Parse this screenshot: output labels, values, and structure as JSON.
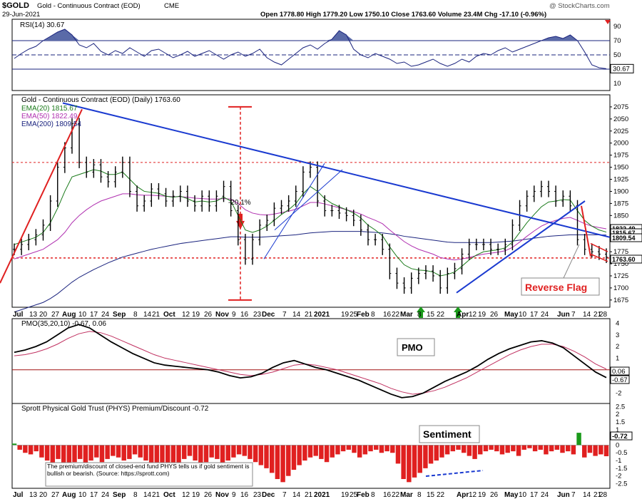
{
  "header": {
    "symbol": "$GOLD",
    "name": "Gold - Continuous Contract (EOD)",
    "exchange": "CME",
    "date": "29-Jun-2021",
    "ohlc": "Open 1778.80  High 1779.20  Low 1750.10  Close 1763.60  Volume 23.4M  Chg -17.10 (-0.96%)",
    "copyright": "@ StockCharts.com"
  },
  "chart_data": [
    {
      "type": "line",
      "panel": "RSI",
      "title": "RSI(14) 30.67",
      "last_value_label": "30.67",
      "y_ticks": [
        10,
        30,
        50,
        70,
        90
      ],
      "ylim": [
        0,
        100
      ],
      "overbought": 70,
      "oversold": 30,
      "series": [
        {
          "name": "RSI(14)",
          "values": [
            45,
            52,
            58,
            62,
            70,
            76,
            82,
            86,
            78,
            64,
            60,
            66,
            55,
            50,
            56,
            52,
            60,
            54,
            48,
            56,
            58,
            52,
            46,
            50,
            55,
            48,
            52,
            56,
            50,
            44,
            50,
            54,
            48,
            52,
            58,
            46,
            40,
            36,
            44,
            52,
            60,
            64,
            58,
            66,
            72,
            84,
            78,
            58,
            50,
            46,
            52,
            48,
            44,
            38,
            40,
            34,
            36,
            40,
            44,
            38,
            34,
            38,
            44,
            40,
            48,
            52,
            50,
            56,
            60,
            54,
            58,
            62,
            66,
            70,
            74,
            76,
            73,
            78,
            70,
            54,
            36,
            32,
            30.67
          ]
        }
      ]
    },
    {
      "type": "line",
      "panel": "Price",
      "title": "Gold - Continuous Contract (EOD) (Daily) 1763.60",
      "y_ticks": [
        1675,
        1700,
        1725,
        1750,
        1775,
        1800,
        1825,
        1850,
        1875,
        1900,
        1925,
        1950,
        1975,
        2000,
        2025,
        2050,
        2075
      ],
      "ylim": [
        1660,
        2100
      ],
      "x_ticks": [
        "Jul",
        "13",
        "20",
        "27",
        "Aug",
        "10",
        "17",
        "24",
        "Sep",
        "8",
        "14",
        "21",
        "Oct",
        "12",
        "19",
        "26",
        "Nov",
        "9",
        "16",
        "23",
        "Dec",
        "7",
        "14",
        "21",
        "2021",
        "19",
        "25",
        "Feb",
        "8",
        "16",
        "22",
        "Mar",
        "8",
        "15",
        "22",
        "Apr",
        "12",
        "19",
        "26",
        "May",
        "10",
        "17",
        "24",
        "Jun",
        "7",
        "14",
        "21",
        "28"
      ],
      "series": [
        {
          "name": "Gold - Continuous Contract (EOD)",
          "values": [
            1780,
            1790,
            1800,
            1810,
            1830,
            1880,
            1950,
            1990,
            2040,
            1960,
            1940,
            1955,
            1930,
            1920,
            1940,
            1960,
            1900,
            1870,
            1880,
            1905,
            1895,
            1880,
            1890,
            1900,
            1880,
            1870,
            1890,
            1870,
            1890,
            1910,
            1860,
            1800,
            1760,
            1800,
            1830,
            1840,
            1865,
            1870,
            1880,
            1900,
            1940,
            1950,
            1880,
            1860,
            1860,
            1855,
            1850,
            1840,
            1820,
            1800,
            1800,
            1780,
            1730,
            1710,
            1700,
            1720,
            1730,
            1735,
            1725,
            1700,
            1730,
            1740,
            1770,
            1790,
            1790,
            1790,
            1780,
            1780,
            1790,
            1830,
            1870,
            1890,
            1900,
            1910,
            1900,
            1880,
            1890,
            1870,
            1800,
            1780,
            1775,
            1770,
            1763.6
          ]
        },
        {
          "name": "EMA(20) 1815.67",
          "values": [
            1790,
            1795,
            1800,
            1805,
            1815,
            1835,
            1865,
            1900,
            1930,
            1935,
            1940,
            1945,
            1942,
            1935,
            1935,
            1940,
            1925,
            1910,
            1900,
            1898,
            1896,
            1890,
            1888,
            1890,
            1885,
            1878,
            1880,
            1878,
            1880,
            1888,
            1880,
            1850,
            1820,
            1815,
            1820,
            1828,
            1840,
            1852,
            1862,
            1875,
            1895,
            1910,
            1900,
            1885,
            1875,
            1868,
            1862,
            1855,
            1845,
            1830,
            1820,
            1808,
            1785,
            1765,
            1748,
            1740,
            1737,
            1736,
            1733,
            1725,
            1728,
            1733,
            1745,
            1758,
            1768,
            1775,
            1777,
            1779,
            1783,
            1795,
            1815,
            1835,
            1852,
            1868,
            1878,
            1880,
            1883,
            1882,
            1860,
            1840,
            1828,
            1820,
            1815.67
          ]
        },
        {
          "name": "EMA(50) 1822.49",
          "values": [
            1760,
            1765,
            1770,
            1775,
            1780,
            1790,
            1800,
            1815,
            1835,
            1850,
            1862,
            1872,
            1880,
            1885,
            1890,
            1895,
            1895,
            1893,
            1892,
            1892,
            1891,
            1890,
            1889,
            1889,
            1888,
            1886,
            1885,
            1884,
            1884,
            1885,
            1884,
            1875,
            1862,
            1855,
            1852,
            1851,
            1853,
            1856,
            1859,
            1863,
            1870,
            1877,
            1877,
            1874,
            1870,
            1866,
            1862,
            1858,
            1853,
            1846,
            1840,
            1833,
            1820,
            1808,
            1796,
            1787,
            1780,
            1775,
            1770,
            1763,
            1760,
            1758,
            1760,
            1763,
            1767,
            1770,
            1772,
            1774,
            1777,
            1784,
            1795,
            1807,
            1818,
            1828,
            1835,
            1840,
            1844,
            1846,
            1840,
            1833,
            1828,
            1825,
            1822.49
          ]
        },
        {
          "name": "EMA(200) 1809.54",
          "values": [
            1650,
            1655,
            1660,
            1665,
            1670,
            1678,
            1688,
            1700,
            1712,
            1722,
            1730,
            1738,
            1745,
            1752,
            1758,
            1764,
            1768,
            1772,
            1776,
            1780,
            1783,
            1786,
            1789,
            1792,
            1794,
            1796,
            1798,
            1800,
            1802,
            1804,
            1806,
            1806,
            1805,
            1805,
            1805,
            1806,
            1807,
            1808,
            1809,
            1810,
            1812,
            1814,
            1815,
            1816,
            1817,
            1817,
            1817,
            1817,
            1817,
            1816,
            1815,
            1814,
            1812,
            1810,
            1807,
            1805,
            1803,
            1801,
            1799,
            1797,
            1795,
            1794,
            1794,
            1794,
            1794,
            1794,
            1794,
            1795,
            1796,
            1797,
            1799,
            1801,
            1803,
            1805,
            1807,
            1808,
            1809,
            1810,
            1810,
            1810,
            1810,
            1810,
            1809.54
          ]
        }
      ],
      "value_labels": [
        "1822.49",
        "1815.67",
        "1809.54",
        "1763.60"
      ],
      "annotations": [
        "-20.1%",
        "Reverse Flag"
      ]
    },
    {
      "type": "line",
      "panel": "PMO",
      "title": "PMO(35,20,10) -0.67, 0.06",
      "y_ticks": [
        -2,
        -1,
        0,
        1,
        2,
        3,
        4
      ],
      "ylim": [
        -2.9,
        4.4
      ],
      "last_value_labels": [
        "0.06",
        "-0.67"
      ],
      "annotation": "PMO",
      "series": [
        {
          "name": "PMO",
          "values": [
            1.5,
            1.7,
            2.0,
            2.4,
            3.0,
            3.6,
            3.9,
            3.6,
            3.0,
            2.4,
            1.9,
            1.4,
            1.0,
            0.6,
            0.4,
            0.3,
            0.2,
            0.1,
            0.0,
            -0.2,
            -0.5,
            -0.7,
            -0.6,
            -0.3,
            0.2,
            0.6,
            0.8,
            0.5,
            0.2,
            0.0,
            -0.3,
            -0.6,
            -0.9,
            -1.3,
            -1.7,
            -2.1,
            -2.4,
            -2.3,
            -2.0,
            -1.5,
            -1.0,
            -0.6,
            -0.2,
            0.3,
            0.9,
            1.4,
            1.8,
            2.1,
            2.4,
            2.5,
            2.3,
            1.9,
            1.2,
            0.5,
            -0.2,
            -0.67
          ]
        },
        {
          "name": "Signal",
          "values": [
            1.2,
            1.3,
            1.5,
            1.8,
            2.2,
            2.7,
            3.1,
            3.3,
            3.2,
            2.9,
            2.5,
            2.1,
            1.7,
            1.3,
            1.0,
            0.8,
            0.6,
            0.4,
            0.2,
            0.0,
            -0.2,
            -0.4,
            -0.5,
            -0.4,
            -0.2,
            0.1,
            0.4,
            0.5,
            0.4,
            0.2,
            0.0,
            -0.3,
            -0.6,
            -0.9,
            -1.2,
            -1.6,
            -1.9,
            -2.1,
            -2.0,
            -1.8,
            -1.5,
            -1.1,
            -0.7,
            -0.2,
            0.3,
            0.8,
            1.3,
            1.7,
            2.0,
            2.2,
            2.2,
            2.0,
            1.6,
            1.1,
            0.5,
            0.06
          ]
        }
      ]
    },
    {
      "type": "bar",
      "panel": "Sentiment",
      "title": "Sprott Physical Gold Trust (PHYS) Premium/Discount -0.72",
      "y_ticks": [
        -2.5,
        -2,
        -1.5,
        -1,
        -0.5,
        0,
        0.5,
        1,
        1.5,
        2,
        2.5
      ],
      "ylim": [
        -2.8,
        2.7
      ],
      "last_value_label": "-0.72",
      "annotation": "Sentiment",
      "note": "The premium/discount of closed-end fund PHYS tells us if gold sentiment is bullish or bearish. (Source: https://sprott.com)",
      "values": [
        0.1,
        -0.3,
        -0.5,
        -0.6,
        -0.4,
        -0.8,
        -1.0,
        -1.2,
        -0.9,
        -1.3,
        -1.5,
        -1.1,
        -0.9,
        -1.2,
        -1.0,
        -0.8,
        -1.1,
        -0.9,
        -0.7,
        -0.8,
        -1.0,
        -0.9,
        -0.6,
        -0.8,
        -1.0,
        -1.2,
        -1.5,
        -1.8,
        -2.0,
        -1.7,
        -1.3,
        -0.9,
        -0.7,
        -1.0,
        -1.4,
        -1.1,
        -0.8,
        -0.9,
        -1.2,
        -1.0,
        -0.8,
        -0.6,
        -0.7,
        -0.9,
        -1.1,
        -1.3,
        -1.5,
        -1.8,
        -2.2,
        -2.4,
        -2.0,
        -1.6,
        -1.3,
        -1.0,
        -0.8,
        -0.7,
        -0.9,
        -1.1,
        -0.8,
        -0.6,
        -0.4,
        -0.3,
        -0.5,
        -0.8,
        -0.6,
        -0.4,
        -0.3,
        -0.5,
        -0.4,
        -0.5,
        -1.2,
        -2.2,
        -2.4,
        -2.1,
        -1.8,
        -1.5,
        -1.2,
        -1.0,
        -0.8,
        -0.6,
        -0.4,
        -0.3,
        -0.5,
        -0.7,
        -0.9,
        -0.6,
        -0.4,
        -0.3,
        -0.4,
        -0.6,
        -0.5,
        -0.4,
        -0.7,
        -0.3,
        -0.2,
        -0.4,
        -0.3,
        -0.6,
        -0.4,
        -0.3,
        -0.5,
        -0.4,
        -0.6,
        0.8,
        -0.8,
        -0.5,
        -0.7,
        -0.6,
        -0.72
      ]
    }
  ]
}
